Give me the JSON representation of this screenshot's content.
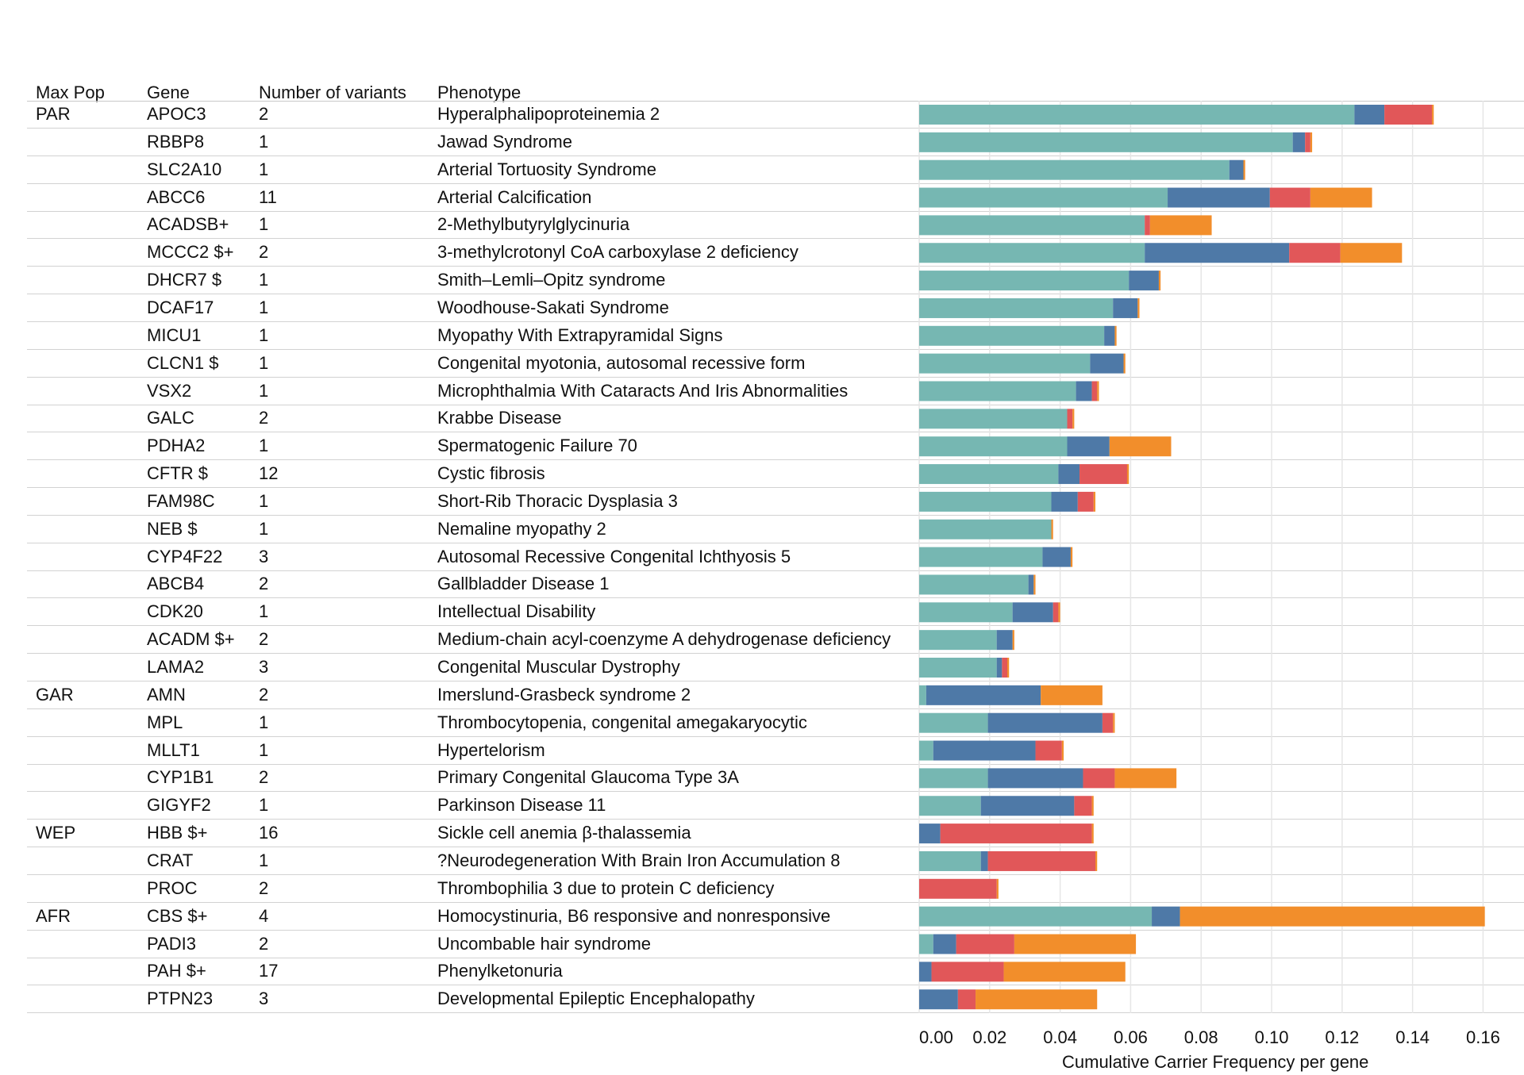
{
  "headers": {
    "max_pop": "Max Pop",
    "gene": "Gene",
    "num_variants": "Number of variants",
    "phenotype": "Phenotype"
  },
  "rows": [
    {
      "pop": "PAR",
      "gene": "APOC3",
      "n": "2",
      "phenotype": "Hyperalphalipoproteinemia 2"
    },
    {
      "pop": "",
      "gene": "RBBP8",
      "n": "1",
      "phenotype": "Jawad Syndrome"
    },
    {
      "pop": "",
      "gene": "SLC2A10",
      "n": "1",
      "phenotype": "Arterial Tortuosity Syndrome"
    },
    {
      "pop": "",
      "gene": "ABCC6",
      "n": "11",
      "phenotype": "Arterial Calcification"
    },
    {
      "pop": "",
      "gene": "ACADSB+",
      "n": "1",
      "phenotype": "2-Methylbutyrylglycinuria"
    },
    {
      "pop": "",
      "gene": "MCCC2 $+",
      "n": "2",
      "phenotype": "3-methylcrotonyl CoA carboxylase 2 deficiency"
    },
    {
      "pop": "",
      "gene": "DHCR7 $",
      "n": "1",
      "phenotype": "Smith–Lemli–Opitz syndrome"
    },
    {
      "pop": "",
      "gene": "DCAF17",
      "n": "1",
      "phenotype": "Woodhouse-Sakati Syndrome"
    },
    {
      "pop": "",
      "gene": "MICU1",
      "n": "1",
      "phenotype": "Myopathy With Extrapyramidal Signs"
    },
    {
      "pop": "",
      "gene": "CLCN1 $",
      "n": "1",
      "phenotype": "Congenital myotonia, autosomal recessive form"
    },
    {
      "pop": "",
      "gene": "VSX2",
      "n": "1",
      "phenotype": "Microphthalmia With Cataracts And Iris Abnormalities"
    },
    {
      "pop": "",
      "gene": "GALC",
      "n": "2",
      "phenotype": "Krabbe Disease"
    },
    {
      "pop": "",
      "gene": "PDHA2",
      "n": "1",
      "phenotype": "Spermatogenic Failure 70"
    },
    {
      "pop": "",
      "gene": "CFTR $",
      "n": "12",
      "phenotype": "Cystic fibrosis"
    },
    {
      "pop": "",
      "gene": "FAM98C",
      "n": "1",
      "phenotype": "Short-Rib Thoracic Dysplasia 3"
    },
    {
      "pop": "",
      "gene": "NEB $",
      "n": "1",
      "phenotype": "Nemaline myopathy 2"
    },
    {
      "pop": "",
      "gene": "CYP4F22",
      "n": "3",
      "phenotype": "Autosomal Recessive Congenital Ichthyosis 5"
    },
    {
      "pop": "",
      "gene": "ABCB4",
      "n": "2",
      "phenotype": "Gallbladder Disease 1"
    },
    {
      "pop": "",
      "gene": "CDK20",
      "n": "1",
      "phenotype": "Intellectual Disability"
    },
    {
      "pop": "",
      "gene": "ACADM $+",
      "n": "2",
      "phenotype": "Medium-chain acyl-coenzyme A dehydrogenase deficiency"
    },
    {
      "pop": "",
      "gene": "LAMA2",
      "n": "3",
      "phenotype": "Congenital Muscular Dystrophy"
    },
    {
      "pop": "GAR",
      "gene": "AMN",
      "n": "2",
      "phenotype": "Imerslund-Grasbeck syndrome 2"
    },
    {
      "pop": "",
      "gene": "MPL",
      "n": "1",
      "phenotype": "Thrombocytopenia, congenital amegakaryocytic"
    },
    {
      "pop": "",
      "gene": "MLLT1",
      "n": "1",
      "phenotype": "Hypertelorism"
    },
    {
      "pop": "",
      "gene": "CYP1B1",
      "n": "2",
      "phenotype": "Primary Congenital Glaucoma Type 3A"
    },
    {
      "pop": "",
      "gene": "GIGYF2",
      "n": "1",
      "phenotype": "Parkinson Disease 11"
    },
    {
      "pop": "WEP",
      "gene": "HBB $+",
      "n": "16",
      "phenotype": "Sickle cell anemia β-thalassemia"
    },
    {
      "pop": "",
      "gene": "CRAT",
      "n": "1",
      "phenotype": "?Neurodegeneration With Brain Iron Accumulation 8"
    },
    {
      "pop": "",
      "gene": "PROC",
      "n": "2",
      "phenotype": "Thrombophilia 3 due to protein C deficiency"
    },
    {
      "pop": "AFR",
      "gene": "CBS $+",
      "n": "4",
      "phenotype": "Homocystinuria, B6 responsive and nonresponsive"
    },
    {
      "pop": "",
      "gene": "PADI3",
      "n": "2",
      "phenotype": "Uncombable hair syndrome"
    },
    {
      "pop": "",
      "gene": "PAH $+",
      "n": "17",
      "phenotype": "Phenylketonuria"
    },
    {
      "pop": "",
      "gene": "PTPN23",
      "n": "3",
      "phenotype": "Developmental Epileptic Encephalopathy"
    }
  ],
  "chart_data": {
    "type": "bar",
    "orientation": "horizontal",
    "stacked": true,
    "xlabel": "Cumulative Carrier Frequency per gene",
    "xlim": [
      0,
      0.165
    ],
    "xticks": [
      "0.00",
      "0.02",
      "0.04",
      "0.06",
      "0.08",
      "0.10",
      "0.12",
      "0.14",
      "0.16"
    ],
    "grid": "vertical",
    "categories": [
      "APOC3",
      "RBBP8",
      "SLC2A10",
      "ABCC6",
      "ACADSB+",
      "MCCC2 $+",
      "DHCR7 $",
      "DCAF17",
      "MICU1",
      "CLCN1 $",
      "VSX2",
      "GALC",
      "PDHA2",
      "CFTR $",
      "FAM98C",
      "NEB $",
      "CYP4F22",
      "ABCB4",
      "CDK20",
      "ACADM $+",
      "LAMA2",
      "AMN",
      "MPL",
      "MLLT1",
      "CYP1B1",
      "GIGYF2",
      "HBB $+",
      "CRAT",
      "PROC",
      "CBS $+",
      "PADI3",
      "PAH $+",
      "PTPN23"
    ],
    "series": [
      {
        "color": "#76b7b2",
        "values": [
          0.1235,
          0.106,
          0.088,
          0.0705,
          0.064,
          0.064,
          0.0595,
          0.055,
          0.0525,
          0.0485,
          0.0445,
          0.042,
          0.042,
          0.0395,
          0.0375,
          0.0375,
          0.035,
          0.031,
          0.0265,
          0.022,
          0.022,
          0.002,
          0.0195,
          0.004,
          0.0195,
          0.0175,
          0,
          0.0175,
          0,
          0.066,
          0.004,
          0,
          0
        ]
      },
      {
        "color": "#4e79a7",
        "values": [
          0.0085,
          0.0035,
          0.004,
          0.029,
          0,
          0.041,
          0.0085,
          0.007,
          0.003,
          0.0095,
          0.0045,
          0,
          0.012,
          0.006,
          0.0075,
          0,
          0.008,
          0.0015,
          0.0115,
          0.0045,
          0.0015,
          0.0325,
          0.0325,
          0.029,
          0.027,
          0.0265,
          0.006,
          0.002,
          0,
          0.008,
          0.0065,
          0.0035,
          0.011
        ]
      },
      {
        "color": "#e15759",
        "values": [
          0.0135,
          0.0015,
          0,
          0.0115,
          0.0015,
          0.0145,
          0,
          0,
          0,
          0,
          0.0015,
          0.0015,
          0,
          0.0135,
          0.0045,
          0,
          0,
          0,
          0.0015,
          0,
          0.0015,
          0,
          0.003,
          0.0075,
          0.009,
          0.005,
          0.043,
          0.0305,
          0.022,
          0,
          0.0165,
          0.0205,
          0.005
        ]
      },
      {
        "color": "#f28e2b",
        "values": [
          0.0005,
          0.0005,
          0.0005,
          0.0175,
          0.0175,
          0.0175,
          0.0005,
          0.0005,
          0.0005,
          0.0005,
          0.0005,
          0.0005,
          0.0175,
          0.0005,
          0.0005,
          0.0005,
          0.0005,
          0.0005,
          0.0005,
          0.0005,
          0.0005,
          0.0175,
          0.0005,
          0.0005,
          0.0175,
          0.0005,
          0.0005,
          0.0005,
          0.0005,
          0.0865,
          0.0345,
          0.0345,
          0.0345
        ]
      }
    ]
  }
}
